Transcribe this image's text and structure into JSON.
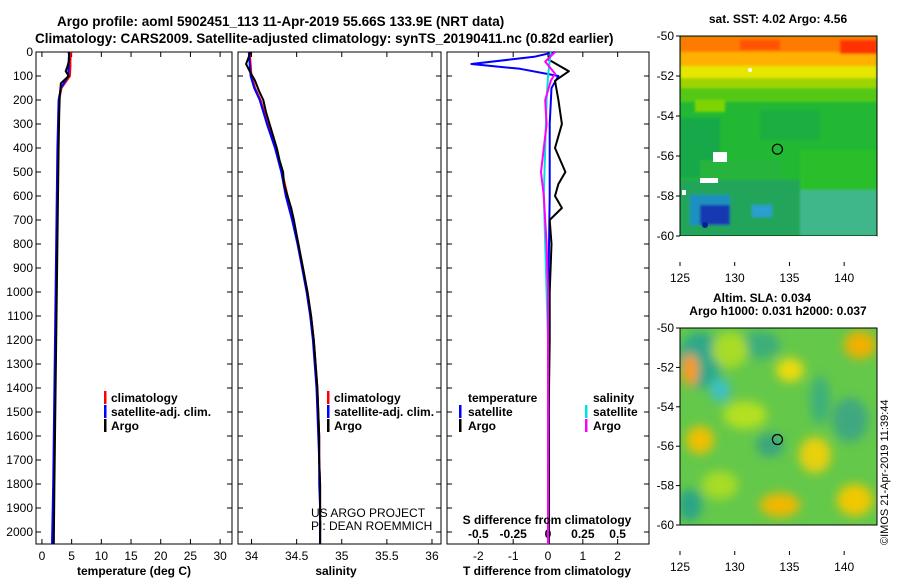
{
  "header": {
    "line1": "Argo profile: aoml 5902451_113 11-Apr-2019 55.66S 133.9E (NRT data)",
    "line2": "Climatology: CARS2009. Satellite-adjusted climatology: synTS_20190411.nc (0.82d earlier)"
  },
  "credits": {
    "project": "US ARGO PROJECT",
    "pi": "PI: DEAN ROEMMICH",
    "imos": "©IMOS 21-Apr-2019 11:39:44"
  },
  "colors": {
    "climatology": "#ff0000",
    "satellite": "#0000ff",
    "argo": "#000000",
    "salinity_satellite": "#00e0e0",
    "salinity_argo": "#ff00ff"
  },
  "legend": {
    "climatology": "climatology",
    "satellite_adj": "satellite-adj. clim.",
    "argo": "Argo",
    "temperature": "temperature",
    "salinity": "salinity",
    "satellite": "satellite"
  },
  "chart_data": [
    {
      "id": "temperature",
      "type": "line",
      "xlabel": "temperature (deg C)",
      "ylabel": "",
      "xlim": [
        -1,
        32
      ],
      "ylim": [
        2050,
        0
      ],
      "xticks": [
        0,
        5,
        10,
        15,
        20,
        25,
        30
      ],
      "yticks": [
        0,
        100,
        200,
        300,
        400,
        500,
        600,
        700,
        800,
        900,
        1000,
        1100,
        1200,
        1300,
        1400,
        1500,
        1600,
        1700,
        1800,
        1900,
        2000
      ],
      "series": [
        {
          "name": "climatology",
          "color": "#ff0000",
          "points": [
            [
              4.9,
              0
            ],
            [
              4.8,
              30
            ],
            [
              4.8,
              60
            ],
            [
              4.7,
              100
            ],
            [
              3.3,
              150
            ],
            [
              2.9,
              200
            ],
            [
              2.8,
              300
            ],
            [
              2.7,
              400
            ],
            [
              2.6,
              600
            ],
            [
              2.5,
              800
            ],
            [
              2.4,
              1000
            ],
            [
              2.3,
              1200
            ],
            [
              2.2,
              1400
            ],
            [
              2.1,
              1600
            ],
            [
              2.0,
              1800
            ],
            [
              1.8,
              2050
            ]
          ]
        },
        {
          "name": "satellite-adj. clim.",
          "color": "#0000ff",
          "points": [
            [
              4.6,
              0
            ],
            [
              4.5,
              30
            ],
            [
              4.5,
              60
            ],
            [
              4.4,
              100
            ],
            [
              3.2,
              150
            ],
            [
              2.8,
              200
            ],
            [
              2.7,
              300
            ],
            [
              2.6,
              400
            ],
            [
              2.5,
              600
            ],
            [
              2.4,
              800
            ],
            [
              2.3,
              1000
            ],
            [
              2.2,
              1200
            ],
            [
              2.1,
              1400
            ],
            [
              2.0,
              1600
            ],
            [
              1.9,
              1800
            ],
            [
              1.7,
              2050
            ]
          ]
        },
        {
          "name": "Argo",
          "color": "#000000",
          "points": [
            [
              4.5,
              0
            ],
            [
              4.6,
              30
            ],
            [
              4.3,
              60
            ],
            [
              4.0,
              80
            ],
            [
              4.5,
              100
            ],
            [
              3.2,
              130
            ],
            [
              3.0,
              180
            ],
            [
              2.9,
              260
            ],
            [
              2.8,
              400
            ],
            [
              2.7,
              600
            ],
            [
              2.6,
              800
            ],
            [
              2.5,
              1000
            ],
            [
              2.4,
              1200
            ],
            [
              2.3,
              1400
            ],
            [
              2.2,
              1600
            ],
            [
              2.1,
              1800
            ],
            [
              2.0,
              2050
            ]
          ]
        }
      ]
    },
    {
      "id": "salinity",
      "type": "line",
      "xlabel": "salinity",
      "ylabel": "",
      "xlim": [
        33.85,
        36.1
      ],
      "ylim": [
        2050,
        0
      ],
      "xticks": [
        34,
        34.5,
        35,
        35.5,
        36
      ],
      "series": [
        {
          "name": "climatology",
          "color": "#ff0000",
          "points": [
            [
              33.98,
              0
            ],
            [
              33.99,
              50
            ],
            [
              34.0,
              100
            ],
            [
              34.04,
              150
            ],
            [
              34.1,
              200
            ],
            [
              34.18,
              300
            ],
            [
              34.27,
              400
            ],
            [
              34.34,
              500
            ],
            [
              34.4,
              600
            ],
            [
              34.46,
              700
            ],
            [
              34.52,
              800
            ],
            [
              34.57,
              900
            ],
            [
              34.62,
              1000
            ],
            [
              34.66,
              1100
            ],
            [
              34.69,
              1200
            ],
            [
              34.71,
              1300
            ],
            [
              34.73,
              1400
            ],
            [
              34.74,
              1500
            ],
            [
              34.75,
              1600
            ],
            [
              34.75,
              1700
            ],
            [
              34.76,
              1800
            ],
            [
              34.76,
              1900
            ],
            [
              34.76,
              2050
            ]
          ]
        },
        {
          "name": "satellite-adj. clim.",
          "color": "#0000ff",
          "points": [
            [
              33.97,
              0
            ],
            [
              33.98,
              50
            ],
            [
              33.99,
              100
            ],
            [
              34.03,
              150
            ],
            [
              34.09,
              200
            ],
            [
              34.17,
              300
            ],
            [
              34.26,
              400
            ],
            [
              34.33,
              500
            ],
            [
              34.38,
              600
            ],
            [
              34.45,
              700
            ],
            [
              34.51,
              800
            ],
            [
              34.56,
              900
            ],
            [
              34.61,
              1000
            ],
            [
              34.65,
              1100
            ],
            [
              34.68,
              1200
            ],
            [
              34.7,
              1300
            ],
            [
              34.72,
              1400
            ],
            [
              34.73,
              1500
            ],
            [
              34.74,
              1600
            ],
            [
              34.75,
              1700
            ],
            [
              34.75,
              1800
            ],
            [
              34.76,
              1900
            ],
            [
              34.76,
              2050
            ]
          ]
        },
        {
          "name": "Argo",
          "color": "#000000",
          "points": [
            [
              33.99,
              0
            ],
            [
              33.97,
              20
            ],
            [
              33.94,
              50
            ],
            [
              33.98,
              80
            ],
            [
              34.04,
              120
            ],
            [
              34.08,
              160
            ],
            [
              34.13,
              200
            ],
            [
              34.16,
              250
            ],
            [
              34.2,
              300
            ],
            [
              34.24,
              350
            ],
            [
              34.28,
              400
            ],
            [
              34.31,
              450
            ],
            [
              34.35,
              500
            ],
            [
              34.36,
              550
            ],
            [
              34.4,
              600
            ],
            [
              34.44,
              650
            ],
            [
              34.47,
              700
            ],
            [
              34.52,
              800
            ],
            [
              34.57,
              900
            ],
            [
              34.62,
              1000
            ],
            [
              34.66,
              1100
            ],
            [
              34.69,
              1200
            ],
            [
              34.71,
              1300
            ],
            [
              34.73,
              1400
            ],
            [
              34.74,
              1500
            ],
            [
              34.75,
              1600
            ],
            [
              34.75,
              1700
            ],
            [
              34.76,
              1800
            ],
            [
              34.76,
              1900
            ],
            [
              34.76,
              2050
            ]
          ]
        }
      ],
      "annotations": [
        "US ARGO PROJECT",
        "PI: DEAN ROEMMICH"
      ]
    },
    {
      "id": "difference",
      "type": "line",
      "xlabel": "T difference from climatology",
      "ylabel": "",
      "title_inside": "S difference from climatology",
      "xlim": [
        -2.9,
        2.9
      ],
      "ylim": [
        2050,
        0
      ],
      "xticks": [
        -2,
        -1,
        0,
        1,
        2
      ],
      "xtick_labels": [
        "-2",
        "-1",
        "0",
        "1",
        "2"
      ],
      "x2ticks": [
        -0.5,
        -0.25,
        0,
        0.25,
        0.5
      ],
      "x2tick_labels": [
        "-0.5",
        "-0.25",
        "0",
        "0.25",
        "0.5"
      ],
      "x2lim": [
        -0.725,
        0.725
      ],
      "series": [
        {
          "name": "temperature satellite",
          "color": "#0000ff",
          "points": [
            [
              0.2,
              0
            ],
            [
              -0.4,
              20
            ],
            [
              -2.2,
              50
            ],
            [
              -0.8,
              70
            ],
            [
              0.3,
              100
            ],
            [
              0.1,
              150
            ],
            [
              0.05,
              300
            ],
            [
              0.05,
              600
            ],
            [
              0.02,
              900
            ],
            [
              0.02,
              1200
            ],
            [
              0.02,
              1500
            ],
            [
              0.03,
              1800
            ],
            [
              0.02,
              2050
            ]
          ]
        },
        {
          "name": "temperature Argo",
          "color": "#000000",
          "points": [
            [
              0.1,
              0
            ],
            [
              0.0,
              30
            ],
            [
              0.6,
              80
            ],
            [
              0.2,
              120
            ],
            [
              0.3,
              200
            ],
            [
              0.4,
              300
            ],
            [
              0.2,
              400
            ],
            [
              0.5,
              500
            ],
            [
              0.3,
              550
            ],
            [
              0.2,
              600
            ],
            [
              0.4,
              650
            ],
            [
              0.05,
              700
            ],
            [
              0.1,
              800
            ],
            [
              0.05,
              1000
            ],
            [
              0.05,
              1200
            ],
            [
              0.02,
              1500
            ],
            [
              0.03,
              1800
            ],
            [
              0.02,
              2050
            ]
          ]
        },
        {
          "name": "salinity satellite",
          "color": "#00e0e0",
          "points": [
            [
              0.02,
              0
            ],
            [
              0.01,
              50
            ],
            [
              0.0,
              100
            ],
            [
              -0.01,
              200
            ],
            [
              -0.02,
              400
            ],
            [
              -0.03,
              600
            ],
            [
              -0.02,
              800
            ],
            [
              -0.01,
              1000
            ],
            [
              0.0,
              1200
            ],
            [
              0.0,
              1500
            ],
            [
              0.0,
              1800
            ],
            [
              0.0,
              2050
            ]
          ]
        },
        {
          "name": "salinity Argo",
          "color": "#ff00ff",
          "points": [
            [
              0.05,
              0
            ],
            [
              -0.02,
              40
            ],
            [
              0.05,
              90
            ],
            [
              0.02,
              120
            ],
            [
              -0.02,
              200
            ],
            [
              -0.01,
              300
            ],
            [
              -0.03,
              400
            ],
            [
              -0.05,
              500
            ],
            [
              -0.03,
              600
            ],
            [
              -0.02,
              700
            ],
            [
              -0.01,
              800
            ],
            [
              0.0,
              1000
            ],
            [
              0.0,
              1500
            ],
            [
              0.0,
              2050
            ]
          ]
        }
      ]
    },
    {
      "id": "sst_map",
      "type": "heatmap",
      "title": "sat. SST: 4.02 Argo: 4.56",
      "xlim": [
        125,
        143
      ],
      "ylim": [
        -60,
        -50
      ],
      "xticks": [
        125,
        130,
        135,
        140
      ],
      "yticks": [
        -50,
        -52,
        -54,
        -56,
        -58,
        -60
      ],
      "marker": {
        "lon": 133.9,
        "lat": -55.66
      }
    },
    {
      "id": "sla_map",
      "type": "heatmap",
      "title": "Altim. SLA: 0.034",
      "subtitle": "Argo h1000: 0.031 h2000: 0.037",
      "xlim": [
        125,
        143
      ],
      "ylim": [
        -60,
        -50
      ],
      "xticks": [
        125,
        130,
        135,
        140
      ],
      "yticks": [
        -50,
        -52,
        -54,
        -56,
        -58,
        -60
      ],
      "marker": {
        "lon": 133.9,
        "lat": -55.66
      }
    }
  ]
}
